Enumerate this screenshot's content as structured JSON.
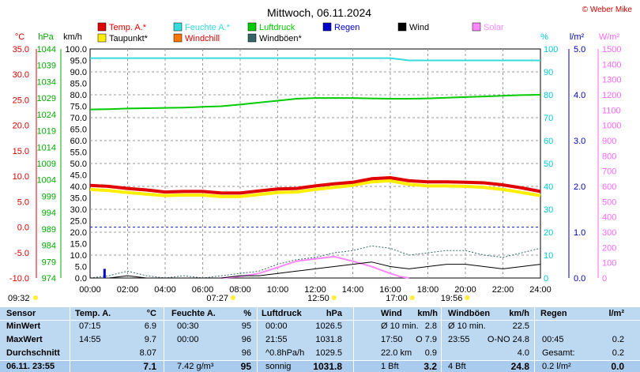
{
  "header": {
    "title": "Mittwoch, 06.11.2024",
    "copyright": "© Weber Mike"
  },
  "chart_data": {
    "type": "line",
    "title": "Mittwoch, 06.11.2024",
    "x_ticks": [
      "00:00",
      "02:00",
      "04:00",
      "06:00",
      "08:00",
      "10:00",
      "12:00",
      "14:00",
      "16:00",
      "18:00",
      "20:00",
      "22:00",
      "24:00"
    ],
    "x_range": [
      0,
      24
    ],
    "axes": {
      "temp": {
        "unit": "°C",
        "ticks": [
          "35.0",
          "30.0",
          "25.0",
          "20.0",
          "15.0",
          "10.0",
          "5.0",
          "0.0",
          "-5.0",
          "-10.0"
        ],
        "range": [
          -10,
          35
        ],
        "color": "#e00000"
      },
      "pressure": {
        "unit": "hPa",
        "ticks": [
          "1044",
          "1039",
          "1034",
          "1029",
          "1024",
          "1019",
          "1014",
          "1009",
          "1004",
          "999",
          "994",
          "989",
          "984",
          "979",
          "974"
        ],
        "range": [
          974,
          1044
        ],
        "color": "#00aa00"
      },
      "wind": {
        "unit": "km/h",
        "ticks": [
          "100.0",
          "95.0",
          "90.0",
          "85.0",
          "80.0",
          "75.0",
          "70.0",
          "65.0",
          "60.0",
          "55.0",
          "50.0",
          "45.0",
          "40.0",
          "35.0",
          "30.0",
          "25.0",
          "20.0",
          "15.0",
          "10.0",
          "5.0",
          "0.0"
        ],
        "range": [
          0,
          100
        ],
        "color": "#000000"
      },
      "humidity": {
        "unit": "%",
        "ticks": [
          "100",
          "90",
          "80",
          "70",
          "60",
          "50",
          "40",
          "30",
          "20",
          "10",
          "0"
        ],
        "range": [
          0,
          100
        ],
        "color": "#00c8d8"
      },
      "rain": {
        "unit": "l/m²",
        "ticks": [
          "5.0",
          "4.0",
          "3.0",
          "2.0",
          "1.0",
          "0.0"
        ],
        "range": [
          0,
          5
        ],
        "color": "#0000c0"
      },
      "solar": {
        "unit": "W/m²",
        "ticks": [
          "1500",
          "1400",
          "1300",
          "1200",
          "1100",
          "1000",
          "900",
          "800",
          "700",
          "600",
          "500",
          "400",
          "300",
          "200",
          "100",
          "0"
        ],
        "range": [
          0,
          1500
        ],
        "color": "#ff66ff"
      }
    },
    "legend": [
      {
        "name": "Temp. A.*",
        "color": "#e00000"
      },
      {
        "name": "Feuchte A.*",
        "color": "#33dddd"
      },
      {
        "name": "Luftdruck",
        "color": "#00cc00"
      },
      {
        "name": "Regen",
        "color": "#0000cc"
      },
      {
        "name": "Wind",
        "color": "#000000"
      },
      {
        "name": "Solar",
        "color": "#ff88ff"
      },
      {
        "name": "Taupunkt*",
        "color": "#ffee00"
      },
      {
        "name": "Windchill",
        "color": "#ff7700"
      },
      {
        "name": "Windböen*",
        "color": "#336666"
      }
    ],
    "series": [
      {
        "name": "Temp. A.*",
        "axis": "temp",
        "color": "#e00000",
        "x": [
          0,
          1,
          2,
          3,
          4,
          5,
          6,
          7,
          8,
          9,
          10,
          11,
          12,
          13,
          14,
          15,
          16,
          17,
          18,
          19,
          20,
          21,
          22,
          23,
          24
        ],
        "y": [
          8.2,
          8.0,
          7.6,
          7.3,
          6.9,
          7.0,
          7.0,
          6.7,
          6.7,
          7.1,
          7.5,
          7.6,
          8.1,
          8.5,
          8.8,
          9.5,
          9.7,
          9.1,
          8.9,
          8.9,
          8.8,
          8.7,
          8.3,
          7.7,
          7.0
        ]
      },
      {
        "name": "Taupunkt*",
        "axis": "temp",
        "color": "#ffee00",
        "x": [
          0,
          1,
          2,
          3,
          4,
          5,
          6,
          7,
          8,
          9,
          10,
          11,
          12,
          13,
          14,
          15,
          16,
          17,
          18,
          19,
          20,
          21,
          22,
          23,
          24
        ],
        "y": [
          7.4,
          7.2,
          6.8,
          6.5,
          6.2,
          6.3,
          6.3,
          6.0,
          6.0,
          6.4,
          6.8,
          6.9,
          7.4,
          7.8,
          8.2,
          8.9,
          9.1,
          8.4,
          8.1,
          8.1,
          8.0,
          7.8,
          7.4,
          6.8,
          6.2
        ]
      },
      {
        "name": "Luftdruck",
        "axis": "pressure",
        "color": "#00cc00",
        "x": [
          0,
          1,
          2,
          3,
          4,
          5,
          6,
          7,
          8,
          9,
          10,
          11,
          12,
          13,
          14,
          15,
          16,
          17,
          18,
          19,
          20,
          21,
          22,
          23,
          24
        ],
        "y": [
          1025.5,
          1025.6,
          1025.8,
          1025.9,
          1026.0,
          1026.1,
          1026.3,
          1026.5,
          1027.0,
          1027.6,
          1028.2,
          1028.8,
          1029.0,
          1029.0,
          1029.0,
          1028.9,
          1028.8,
          1028.8,
          1028.9,
          1029.1,
          1029.3,
          1029.5,
          1029.7,
          1029.9,
          1030.0
        ]
      },
      {
        "name": "Feuchte A.*",
        "axis": "humidity",
        "color": "#33dddd",
        "x": [
          0,
          1,
          2,
          3,
          4,
          5,
          6,
          7,
          8,
          9,
          10,
          11,
          12,
          13,
          14,
          15,
          16,
          17,
          18,
          19,
          20,
          21,
          22,
          23,
          24
        ],
        "y": [
          96,
          96,
          96,
          96,
          96,
          96,
          96,
          96,
          96,
          96,
          96,
          96,
          96,
          96,
          96,
          96,
          96,
          95,
          95,
          95,
          95,
          95,
          95,
          95,
          95
        ]
      },
      {
        "name": "Windböen*",
        "axis": "wind",
        "color": "#336666",
        "x": [
          0,
          1,
          2,
          3,
          4,
          5,
          6,
          7,
          8,
          9,
          10,
          11,
          12,
          13,
          14,
          15,
          16,
          17,
          18,
          19,
          20,
          21,
          22,
          23,
          24
        ],
        "y": [
          0,
          1,
          3,
          1,
          0,
          1,
          0,
          1,
          2,
          3,
          6,
          8,
          9,
          11,
          12,
          14,
          13,
          10,
          11,
          12,
          12,
          10,
          9,
          11,
          13
        ]
      },
      {
        "name": "Wind",
        "axis": "wind",
        "color": "#000000",
        "x": [
          0,
          1,
          2,
          3,
          4,
          5,
          6,
          7,
          8,
          9,
          10,
          11,
          12,
          13,
          14,
          15,
          16,
          17,
          18,
          19,
          20,
          21,
          22,
          23,
          24
        ],
        "y": [
          0,
          0,
          1,
          0,
          0,
          0,
          0,
          0,
          1,
          1,
          2,
          3,
          4,
          5,
          6,
          7,
          5,
          4,
          5,
          6,
          6,
          5,
          4,
          5,
          6
        ]
      },
      {
        "name": "Solar",
        "axis": "solar",
        "color": "#ff88ff",
        "x": [
          7,
          8,
          9,
          10,
          11,
          12,
          13,
          14,
          15,
          16,
          16.5,
          17
        ],
        "y": [
          0,
          10,
          30,
          70,
          110,
          125,
          140,
          110,
          75,
          30,
          10,
          0
        ]
      },
      {
        "name": "Regen",
        "axis": "rain",
        "color": "#0000cc",
        "x": [
          0.75
        ],
        "y": [
          0.2
        ]
      }
    ],
    "event_marks": [
      {
        "label": "09:32",
        "x": 0,
        "row": 1
      },
      {
        "label": "07:27",
        "x": 7.45,
        "row": 0
      },
      {
        "label": "12:50",
        "x": 12.83,
        "row": 1
      },
      {
        "label": "17:00",
        "x": 17.0,
        "row": 1
      },
      {
        "label": "19:56",
        "x": 19.93,
        "row": 1
      }
    ]
  },
  "table": {
    "headers": [
      "Sensor",
      "Temp. A.",
      "°C",
      "Feuchte A.",
      "%",
      "Luftdruck",
      "hPa",
      "Wind",
      "km/h",
      "Windböen",
      "km/h",
      "Regen",
      "l/m²"
    ],
    "rows": [
      {
        "label": "MinWert",
        "c": [
          "07:15",
          "6.9",
          "00:30",
          "95",
          "00:00",
          "1026.5",
          "Ø 10 min.",
          "2.8",
          "Ø 10 min.",
          "22.5",
          "",
          ""
        ]
      },
      {
        "label": "MaxWert",
        "c": [
          "14:55",
          "9.7",
          "00:00",
          "96",
          "21:55",
          "1031.8",
          "17:50",
          "O 7.9",
          "23:55",
          "O-NO 24.8",
          "00:45",
          "0.2"
        ]
      },
      {
        "label": "Durchschnitt",
        "c": [
          "",
          "8.07",
          "",
          "96",
          "^0.8hPa/h",
          "1029.5",
          "22.0 km",
          "0.9",
          "",
          "4.0",
          "Gesamt:",
          "0.2"
        ]
      },
      {
        "label": "06.11. 23:55",
        "c": [
          "",
          "7.1",
          "7.42 g/m³",
          "95",
          "sonnig",
          "1031.8",
          "1 Bft",
          "3.2",
          "4 Bft",
          "24.8",
          "0.2 l/m²",
          "0.0"
        ]
      }
    ]
  }
}
